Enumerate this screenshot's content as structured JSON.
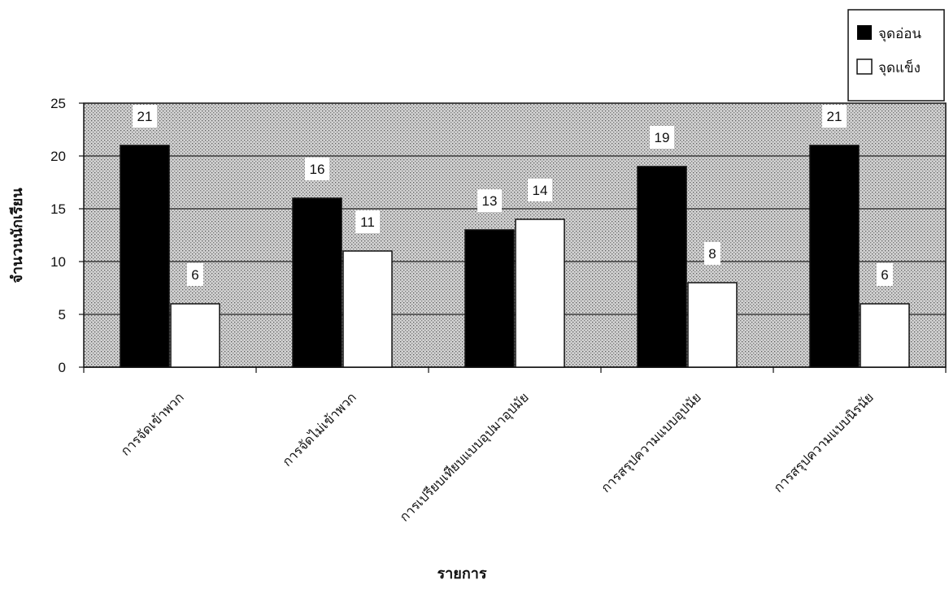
{
  "chart_data": {
    "type": "bar",
    "categories": [
      "การจัดเข้าพวก",
      "การจัดไม่เข้าพวก",
      "การเปรียบเทียบแบบอุปมาอุปมัย",
      "การสรุปความแบบอุปนัย",
      "การสรุปความแบบนิรนัย"
    ],
    "series": [
      {
        "name": "จุดอ่อน",
        "values": [
          21,
          16,
          13,
          19,
          21
        ],
        "color": "#000000"
      },
      {
        "name": "จุดแข็ง",
        "values": [
          6,
          11,
          14,
          8,
          6
        ],
        "color": "#ffffff"
      }
    ],
    "xlabel": "รายการ",
    "ylabel": "จำนวนนักเรียน",
    "ylim": [
      0,
      25
    ],
    "yticks": [
      0,
      5,
      10,
      15,
      20,
      25
    ],
    "grid": true,
    "legend": "top-right",
    "plot_background": "#c8c8c8"
  }
}
